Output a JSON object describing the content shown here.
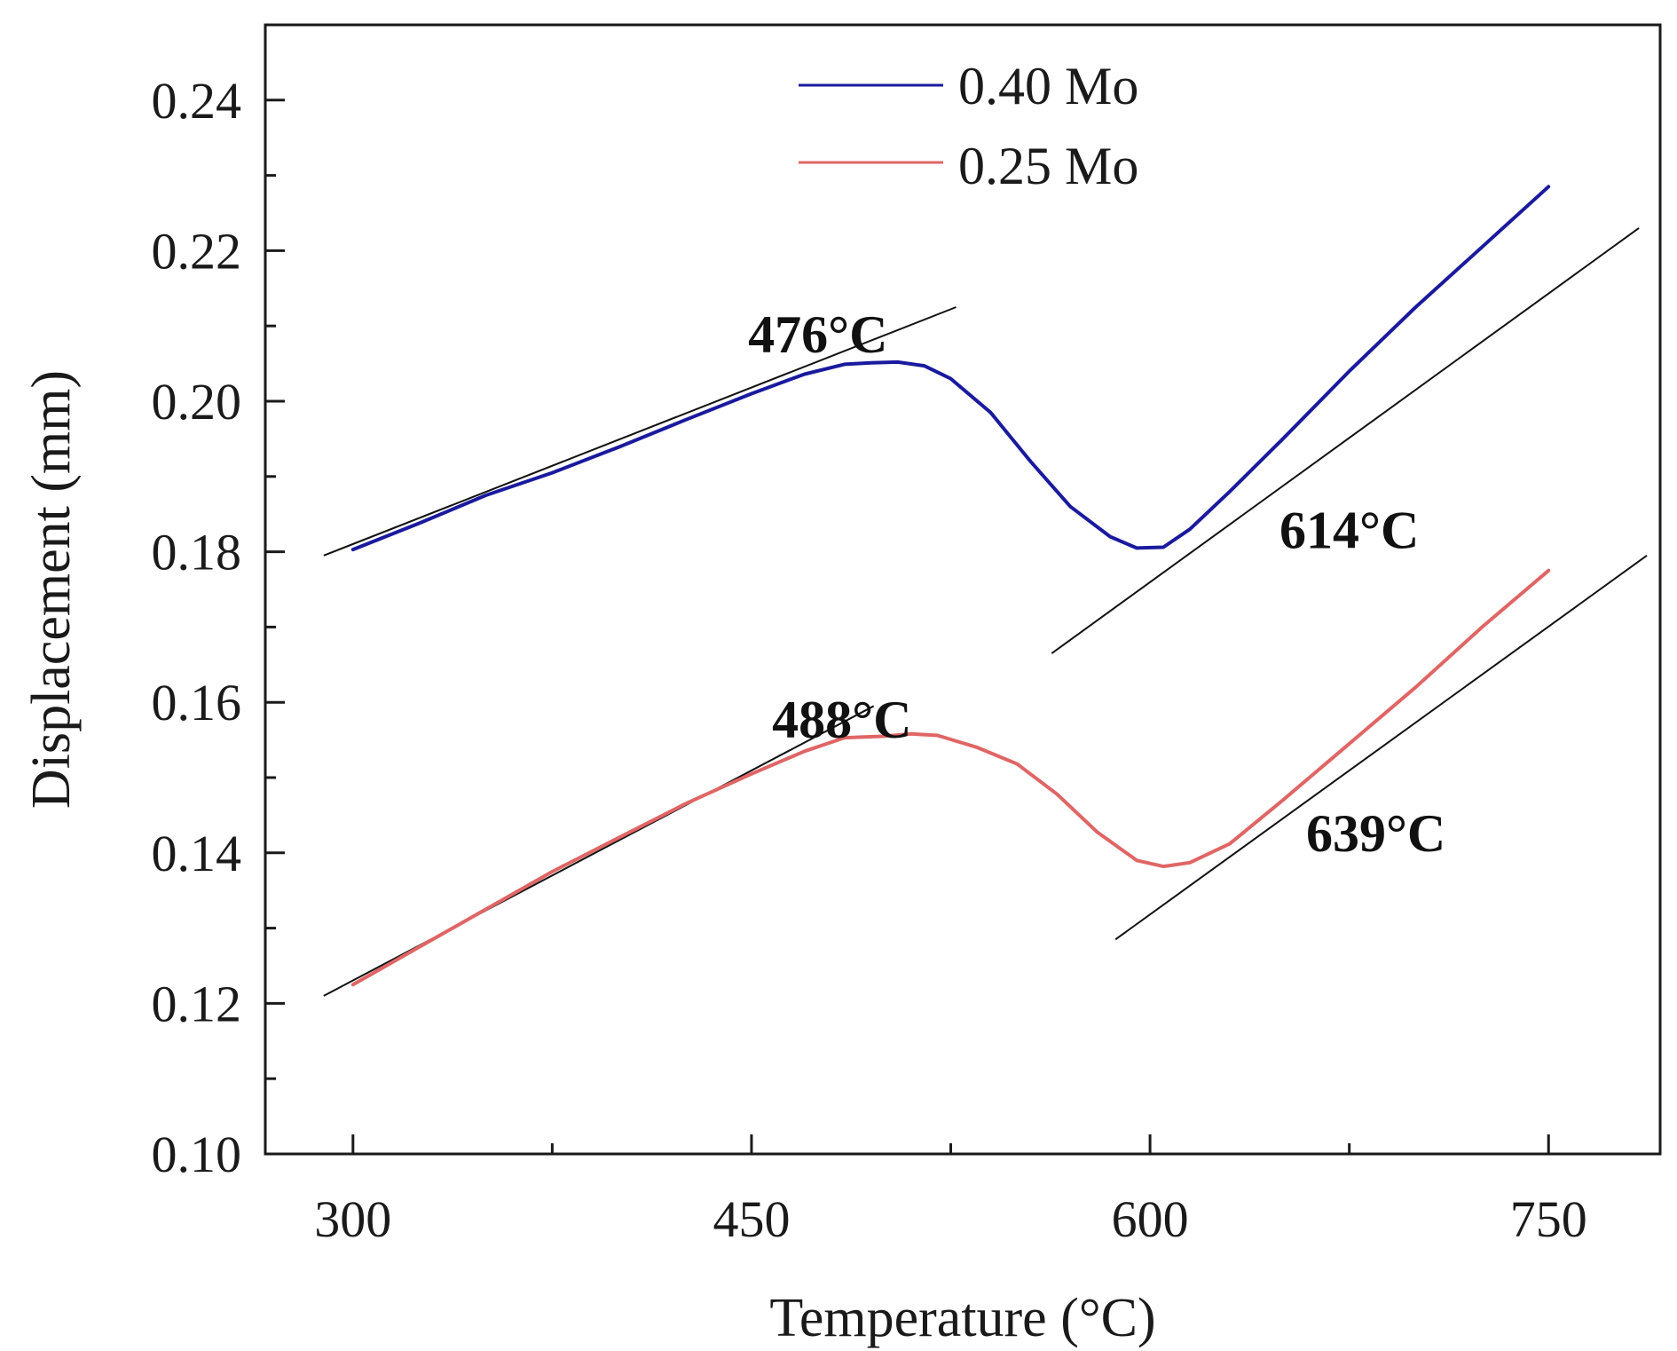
{
  "chart_data": {
    "type": "line",
    "xlabel": "Temperature (°C)",
    "ylabel": "Displacement (mm)",
    "xlim": [
      267,
      792
    ],
    "ylim": [
      0.1,
      0.25
    ],
    "x_ticks": [
      300,
      450,
      600,
      750
    ],
    "x_minor_ticks": [
      375,
      525,
      675
    ],
    "y_ticks": [
      0.1,
      0.12,
      0.14,
      0.16,
      0.18,
      0.2,
      0.22,
      0.24
    ],
    "y_minor_ticks": [
      0.11,
      0.13,
      0.15,
      0.17,
      0.19,
      0.21,
      0.23
    ],
    "x_tick_labels": [
      "300",
      "450",
      "600",
      "750"
    ],
    "y_tick_labels": [
      "0.10",
      "0.12",
      "0.14",
      "0.16",
      "0.18",
      "0.20",
      "0.22",
      "0.24"
    ],
    "grid": false,
    "legend_position": "top-center",
    "series": [
      {
        "name": "0.40 Mo",
        "color": "#1a1a9e",
        "x": [
          300,
          325,
          350,
          375,
          400,
          425,
          450,
          470,
          485,
          495,
          505,
          515,
          525,
          540,
          555,
          570,
          585,
          595,
          605,
          615,
          630,
          650,
          675,
          700,
          725,
          750
        ],
        "y": [
          0.1803,
          0.1838,
          0.1875,
          0.1905,
          0.1939,
          0.1975,
          0.201,
          0.2036,
          0.2049,
          0.2051,
          0.2052,
          0.2047,
          0.203,
          0.1985,
          0.192,
          0.186,
          0.182,
          0.1805,
          0.1806,
          0.183,
          0.188,
          0.195,
          0.204,
          0.2125,
          0.2205,
          0.2285
        ]
      },
      {
        "name": "0.25 Mo",
        "color": "#e06565",
        "x": [
          300,
          325,
          350,
          375,
          400,
          425,
          450,
          470,
          485,
          500,
          510,
          520,
          535,
          550,
          565,
          580,
          595,
          605,
          615,
          630,
          650,
          675,
          700,
          725,
          750
        ],
        "y": [
          0.1225,
          0.1275,
          0.1325,
          0.1375,
          0.142,
          0.1465,
          0.1505,
          0.1535,
          0.1553,
          0.1555,
          0.1558,
          0.1556,
          0.154,
          0.1518,
          0.1478,
          0.1428,
          0.139,
          0.1382,
          0.1387,
          0.1412,
          0.147,
          0.1545,
          0.162,
          0.17,
          0.1775
        ]
      }
    ],
    "tangent_lines": [
      {
        "x1": 289,
        "y1": 0.1795,
        "x2": 527,
        "y2": 0.2125
      },
      {
        "x1": 563,
        "y1": 0.1665,
        "x2": 784,
        "y2": 0.223
      },
      {
        "x1": 289,
        "y1": 0.121,
        "x2": 496,
        "y2": 0.1595
      },
      {
        "x1": 587,
        "y1": 0.1285,
        "x2": 787,
        "y2": 0.1795
      }
    ],
    "annotations": [
      {
        "text": "476°C",
        "x": 475,
        "y": 0.2065
      },
      {
        "text": "614°C",
        "x": 675,
        "y": 0.1805
      },
      {
        "text": "488°C",
        "x": 484,
        "y": 0.1553
      },
      {
        "text": "639°C",
        "x": 685,
        "y": 0.1402
      }
    ]
  }
}
